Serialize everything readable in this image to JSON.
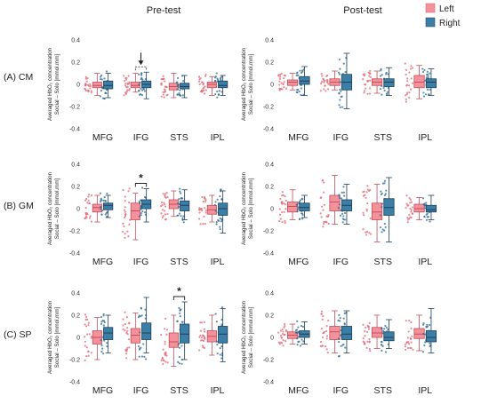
{
  "figure": {
    "column_titles": [
      "Pre-test",
      "Post-test"
    ],
    "row_labels": [
      "(A) CM",
      "(B) GM",
      "(C) SP"
    ],
    "legend": [
      {
        "label": "Left",
        "color": "#f4919a"
      },
      {
        "label": "Right",
        "color": "#3c7fa6"
      }
    ],
    "ylabel_line1": "Averaged HbO₂ concentration",
    "ylabel_line2": "Social – Solo [mmol.mm]",
    "significance_marker": "*"
  },
  "chart_data": [
    {
      "type": "box",
      "row": "(A) CM",
      "panel": "Pre-test",
      "categories": [
        "MFG",
        "IFG",
        "STS",
        "IPL"
      ],
      "ylim": [
        -0.4,
        0.4
      ],
      "yticks": [
        -0.4,
        -0.2,
        0,
        0.2,
        0.4
      ],
      "series": [
        {
          "name": "Left",
          "boxes": [
            {
              "whislo": -0.1,
              "q1": -0.03,
              "med": -0.01,
              "q3": 0.02,
              "whishi": 0.1
            },
            {
              "whislo": -0.07,
              "q1": -0.03,
              "med": -0.01,
              "q3": 0.02,
              "whishi": 0.1
            },
            {
              "whislo": -0.12,
              "q1": -0.05,
              "med": -0.02,
              "q3": 0.01,
              "whishi": 0.1
            },
            {
              "whislo": -0.1,
              "q1": -0.03,
              "med": 0.0,
              "q3": 0.02,
              "whishi": 0.07
            }
          ]
        },
        {
          "name": "Right",
          "boxes": [
            {
              "whislo": -0.12,
              "q1": -0.04,
              "med": -0.01,
              "q3": 0.03,
              "whishi": 0.1
            },
            {
              "whislo": -0.13,
              "q1": -0.03,
              "med": 0.0,
              "q3": 0.03,
              "whishi": 0.11
            },
            {
              "whislo": -0.12,
              "q1": -0.04,
              "med": -0.02,
              "q3": 0.01,
              "whishi": 0.08
            },
            {
              "whislo": -0.1,
              "q1": -0.03,
              "med": -0.01,
              "q3": 0.03,
              "whishi": 0.08
            }
          ]
        }
      ],
      "annotations": [
        {
          "type": "arrow-bracket",
          "category": "IFG",
          "label": ""
        }
      ]
    },
    {
      "type": "box",
      "row": "(A) CM",
      "panel": "Post-test",
      "categories": [
        "MFG",
        "IFG",
        "STS",
        "IPL"
      ],
      "ylim": [
        -0.4,
        0.4
      ],
      "yticks": [
        -0.4,
        -0.2,
        0,
        0.2,
        0.4
      ],
      "series": [
        {
          "name": "Left",
          "boxes": [
            {
              "whislo": -0.05,
              "q1": -0.01,
              "med": 0.02,
              "q3": 0.04,
              "whishi": 0.1
            },
            {
              "whislo": -0.05,
              "q1": -0.01,
              "med": 0.02,
              "q3": 0.05,
              "whishi": 0.12
            },
            {
              "whislo": -0.08,
              "q1": -0.01,
              "med": 0.02,
              "q3": 0.05,
              "whishi": 0.12
            },
            {
              "whislo": -0.13,
              "q1": -0.03,
              "med": 0.02,
              "q3": 0.08,
              "whishi": 0.17
            }
          ]
        },
        {
          "name": "Right",
          "boxes": [
            {
              "whislo": -0.1,
              "q1": 0.0,
              "med": 0.03,
              "q3": 0.07,
              "whishi": 0.16
            },
            {
              "whislo": -0.22,
              "q1": -0.05,
              "med": 0.02,
              "q3": 0.09,
              "whishi": 0.28
            },
            {
              "whislo": -0.1,
              "q1": -0.02,
              "med": 0.02,
              "q3": 0.05,
              "whishi": 0.15
            },
            {
              "whislo": -0.1,
              "q1": -0.03,
              "med": 0.02,
              "q3": 0.05,
              "whishi": 0.14
            }
          ]
        }
      ],
      "annotations": []
    },
    {
      "type": "box",
      "row": "(B) GM",
      "panel": "Pre-test",
      "categories": [
        "MFG",
        "IFG",
        "STS",
        "IPL"
      ],
      "ylim": [
        -0.4,
        0.4
      ],
      "yticks": [
        -0.4,
        -0.2,
        0,
        0.2,
        0.4
      ],
      "series": [
        {
          "name": "Left",
          "boxes": [
            {
              "whislo": -0.12,
              "q1": -0.03,
              "med": 0.01,
              "q3": 0.04,
              "whishi": 0.12
            },
            {
              "whislo": -0.28,
              "q1": -0.1,
              "med": -0.02,
              "q3": 0.05,
              "whishi": 0.14
            },
            {
              "whislo": -0.07,
              "q1": 0.0,
              "med": 0.04,
              "q3": 0.08,
              "whishi": 0.16
            },
            {
              "whislo": -0.12,
              "q1": -0.05,
              "med": -0.01,
              "q3": 0.03,
              "whishi": 0.12
            }
          ]
        },
        {
          "name": "Right",
          "boxes": [
            {
              "whislo": -0.08,
              "q1": -0.01,
              "med": 0.03,
              "q3": 0.05,
              "whishi": 0.12
            },
            {
              "whislo": -0.12,
              "q1": 0.0,
              "med": 0.04,
              "q3": 0.08,
              "whishi": 0.18
            },
            {
              "whislo": -0.1,
              "q1": -0.02,
              "med": 0.03,
              "q3": 0.07,
              "whishi": 0.17
            },
            {
              "whislo": -0.22,
              "q1": -0.06,
              "med": 0.0,
              "q3": 0.05,
              "whishi": 0.16
            }
          ]
        }
      ],
      "annotations": [
        {
          "type": "bracket",
          "category": "IFG",
          "label": "*"
        }
      ]
    },
    {
      "type": "box",
      "row": "(B) GM",
      "panel": "Post-test",
      "categories": [
        "MFG",
        "IFG",
        "STS",
        "IPL"
      ],
      "ylim": [
        -0.4,
        0.4
      ],
      "yticks": [
        -0.4,
        -0.2,
        0,
        0.2,
        0.4
      ],
      "series": [
        {
          "name": "Left",
          "boxes": [
            {
              "whislo": -0.1,
              "q1": -0.03,
              "med": 0.02,
              "q3": 0.06,
              "whishi": 0.17
            },
            {
              "whislo": -0.14,
              "q1": -0.02,
              "med": 0.06,
              "q3": 0.12,
              "whishi": 0.3
            },
            {
              "whislo": -0.3,
              "q1": -0.1,
              "med": -0.03,
              "q3": 0.05,
              "whishi": 0.22
            },
            {
              "whislo": -0.1,
              "q1": -0.03,
              "med": 0.0,
              "q3": 0.04,
              "whishi": 0.1
            }
          ]
        },
        {
          "name": "Right",
          "boxes": [
            {
              "whislo": -0.08,
              "q1": -0.02,
              "med": 0.01,
              "q3": 0.05,
              "whishi": 0.12
            },
            {
              "whislo": -0.14,
              "q1": -0.02,
              "med": 0.03,
              "q3": 0.08,
              "whishi": 0.22
            },
            {
              "whislo": -0.3,
              "q1": -0.06,
              "med": 0.01,
              "q3": 0.09,
              "whishi": 0.28
            },
            {
              "whislo": -0.1,
              "q1": -0.03,
              "med": -0.01,
              "q3": 0.03,
              "whishi": 0.12
            }
          ]
        }
      ],
      "annotations": []
    },
    {
      "type": "box",
      "row": "(C) SP",
      "panel": "Pre-test",
      "categories": [
        "MFG",
        "IFG",
        "STS",
        "IPL"
      ],
      "ylim": [
        -0.4,
        0.4
      ],
      "yticks": [
        -0.4,
        -0.2,
        0,
        0.2,
        0.4
      ],
      "series": [
        {
          "name": "Left",
          "boxes": [
            {
              "whislo": -0.2,
              "q1": -0.06,
              "med": 0.0,
              "q3": 0.06,
              "whishi": 0.18
            },
            {
              "whislo": -0.2,
              "q1": -0.05,
              "med": 0.02,
              "q3": 0.08,
              "whishi": 0.22
            },
            {
              "whislo": -0.26,
              "q1": -0.09,
              "med": -0.04,
              "q3": 0.04,
              "whishi": 0.2
            },
            {
              "whislo": -0.16,
              "q1": -0.04,
              "med": 0.01,
              "q3": 0.06,
              "whishi": 0.2
            }
          ]
        },
        {
          "name": "Right",
          "boxes": [
            {
              "whislo": -0.14,
              "q1": -0.02,
              "med": 0.04,
              "q3": 0.09,
              "whishi": 0.2
            },
            {
              "whislo": -0.14,
              "q1": -0.02,
              "med": 0.04,
              "q3": 0.13,
              "whishi": 0.36
            },
            {
              "whislo": -0.2,
              "q1": -0.05,
              "med": 0.03,
              "q3": 0.12,
              "whishi": 0.32
            },
            {
              "whislo": -0.22,
              "q1": -0.05,
              "med": 0.03,
              "q3": 0.1,
              "whishi": 0.26
            }
          ]
        }
      ],
      "annotations": [
        {
          "type": "bracket",
          "category": "STS",
          "label": "*"
        }
      ]
    },
    {
      "type": "box",
      "row": "(C) SP",
      "panel": "Post-test",
      "categories": [
        "MFG",
        "IFG",
        "STS",
        "IPL"
      ],
      "ylim": [
        -0.4,
        0.4
      ],
      "yticks": [
        -0.4,
        -0.2,
        0,
        0.2,
        0.4
      ],
      "series": [
        {
          "name": "Left",
          "boxes": [
            {
              "whislo": -0.06,
              "q1": -0.01,
              "med": 0.02,
              "q3": 0.05,
              "whishi": 0.12
            },
            {
              "whislo": -0.14,
              "q1": -0.02,
              "med": 0.05,
              "q3": 0.1,
              "whishi": 0.24
            },
            {
              "whislo": -0.1,
              "q1": 0.0,
              "med": 0.04,
              "q3": 0.09,
              "whishi": 0.2
            },
            {
              "whislo": -0.12,
              "q1": -0.01,
              "med": 0.03,
              "q3": 0.08,
              "whishi": 0.2
            }
          ]
        },
        {
          "name": "Right",
          "boxes": [
            {
              "whislo": -0.06,
              "q1": 0.0,
              "med": 0.03,
              "q3": 0.06,
              "whishi": 0.14
            },
            {
              "whislo": -0.14,
              "q1": -0.02,
              "med": 0.03,
              "q3": 0.1,
              "whishi": 0.24
            },
            {
              "whislo": -0.1,
              "q1": -0.03,
              "med": 0.0,
              "q3": 0.05,
              "whishi": 0.16
            },
            {
              "whislo": -0.14,
              "q1": -0.04,
              "med": 0.0,
              "q3": 0.06,
              "whishi": 0.26
            }
          ]
        }
      ],
      "annotations": []
    }
  ]
}
